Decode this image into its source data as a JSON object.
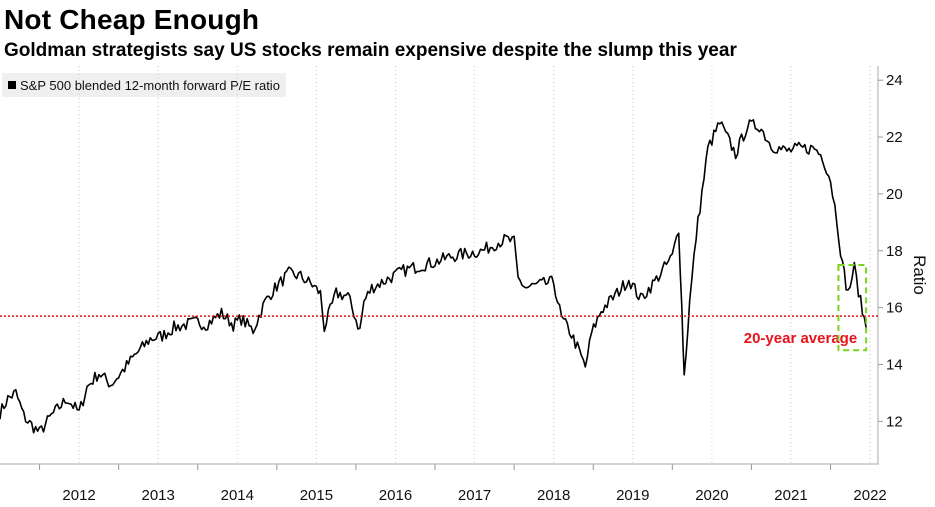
{
  "header": {
    "title": "Not Cheap Enough",
    "subtitle": "Goldman strategists say US stocks remain expensive despite the slump this year"
  },
  "chart_data": {
    "type": "line",
    "title": "Not Cheap Enough",
    "subtitle": "Goldman strategists say US stocks remain expensive despite the slump this year",
    "ylabel": "Ratio",
    "xlabel": "",
    "ylim": [
      10.5,
      24.5
    ],
    "xlim": [
      2011.5,
      2022.6
    ],
    "yticks": [
      12,
      14,
      16,
      18,
      20,
      22,
      24
    ],
    "xticks": [
      2012,
      2013,
      2014,
      2015,
      2016,
      2017,
      2018,
      2019,
      2020,
      2021,
      2022
    ],
    "grid": "vertical dotted",
    "legend": "top-left",
    "series": [
      {
        "name": "S&P 500 blended 12-month forward P/E ratio",
        "color": "#000000",
        "x": [
          2011.5,
          2011.6,
          2011.7,
          2011.8,
          2011.85,
          2012.0,
          2012.15,
          2012.35,
          2012.5,
          2012.6,
          2012.75,
          2012.9,
          2013.0,
          2013.2,
          2013.4,
          2013.55,
          2013.7,
          2013.85,
          2014.0,
          2014.1,
          2014.3,
          2014.45,
          2014.55,
          2014.7,
          2014.85,
          2014.95,
          2015.15,
          2015.3,
          2015.45,
          2015.55,
          2015.6,
          2015.75,
          2015.9,
          2016.05,
          2016.1,
          2016.2,
          2016.4,
          2016.6,
          2016.85,
          2017.0,
          2017.2,
          2017.4,
          2017.6,
          2017.8,
          2017.9,
          2018.0,
          2018.05,
          2018.15,
          2018.3,
          2018.5,
          2018.6,
          2018.7,
          2018.8,
          2018.9,
          2018.98,
          2019.1,
          2019.3,
          2019.45,
          2019.6,
          2019.8,
          2020.0,
          2020.08,
          2020.12,
          2020.15,
          2020.22,
          2020.3,
          2020.45,
          2020.6,
          2020.8,
          2020.95,
          2021.1,
          2021.25,
          2021.45,
          2021.6,
          2021.8,
          2021.9,
          2022.0,
          2022.08,
          2022.15,
          2022.22,
          2022.3,
          2022.38,
          2022.45
        ],
        "values": [
          12.3,
          12.8,
          13.0,
          12.2,
          12.0,
          11.6,
          12.2,
          12.8,
          12.3,
          13.2,
          13.7,
          13.3,
          13.6,
          14.3,
          14.9,
          15.0,
          15.3,
          15.4,
          15.5,
          15.4,
          15.8,
          15.4,
          15.6,
          15.2,
          16.2,
          16.6,
          17.2,
          17.1,
          16.8,
          16.5,
          15.3,
          16.5,
          16.4,
          15.2,
          16.2,
          16.7,
          17.0,
          17.3,
          17.5,
          17.6,
          17.8,
          17.9,
          18.0,
          18.3,
          18.4,
          18.3,
          17.0,
          16.7,
          16.8,
          16.9,
          15.6,
          15.2,
          14.6,
          13.9,
          15.1,
          15.9,
          16.5,
          17.0,
          16.3,
          17.0,
          17.8,
          18.8,
          16.0,
          13.6,
          16.2,
          18.5,
          21.6,
          22.5,
          21.4,
          22.4,
          22.4,
          21.7,
          21.5,
          21.6,
          21.6,
          21.3,
          20.5,
          19.1,
          17.5,
          16.5,
          17.4,
          16.2,
          15.3
        ]
      }
    ],
    "annotations": [
      {
        "type": "hline",
        "value": 15.7,
        "color": "#e8121a",
        "style": "dotted",
        "label": "20-year average"
      },
      {
        "type": "box",
        "color": "#7bd321",
        "style": "dashed",
        "x_range": [
          2022.1,
          2022.45
        ],
        "y_range": [
          14.5,
          17.5
        ]
      }
    ]
  }
}
